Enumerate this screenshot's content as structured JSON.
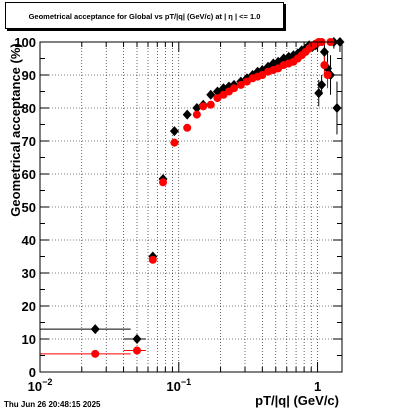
{
  "chart_data": {
    "type": "scatter",
    "title": "Geometrical acceptance for Global vs pT/|q| (GeV/c) at |  η  | <= 1.0",
    "xlabel": "pT/|q| (GeV/c)",
    "ylabel": "Geometrical acceptance (%)",
    "xscale": "log",
    "xlim": [
      0.01,
      1.5
    ],
    "ylim": [
      0,
      100
    ],
    "grid": true,
    "y_ticks": [
      "0",
      "10",
      "20",
      "30",
      "40",
      "50",
      "60",
      "70",
      "80",
      "90",
      "100"
    ],
    "x_tick_labels": [
      {
        "value": 0.01,
        "base": "10",
        "exp": "−2"
      },
      {
        "value": 0.1,
        "base": "10",
        "exp": "−1"
      },
      {
        "value": 1,
        "base": "1",
        "exp": ""
      }
    ],
    "series": [
      {
        "color": "#000000",
        "points": [
          {
            "x": 0.025,
            "xerr": [
              0.01,
              0.045
            ],
            "y": 13
          },
          {
            "x": 0.05,
            "xerr": [
              0.04,
              0.058
            ],
            "y": 10
          },
          {
            "x": 0.065,
            "y": 35
          },
          {
            "x": 0.077,
            "y": 58.5
          },
          {
            "x": 0.093,
            "xerr": [
              0.087,
              0.1
            ],
            "y": 73
          },
          {
            "x": 0.115,
            "xerr": [
              0.108,
              0.122
            ],
            "y": 78
          },
          {
            "x": 0.135,
            "y": 80
          },
          {
            "x": 0.15,
            "y": 81
          },
          {
            "x": 0.17,
            "y": 84
          },
          {
            "x": 0.19,
            "y": 85
          },
          {
            "x": 0.21,
            "y": 86
          },
          {
            "x": 0.23,
            "y": 86.5
          },
          {
            "x": 0.25,
            "y": 87
          },
          {
            "x": 0.28,
            "y": 88
          },
          {
            "x": 0.31,
            "y": 89
          },
          {
            "x": 0.34,
            "y": 90
          },
          {
            "x": 0.37,
            "y": 91
          },
          {
            "x": 0.4,
            "y": 91.5
          },
          {
            "x": 0.44,
            "y": 92.5
          },
          {
            "x": 0.48,
            "y": 93.5
          },
          {
            "x": 0.52,
            "y": 94
          },
          {
            "x": 0.57,
            "y": 95
          },
          {
            "x": 0.62,
            "y": 95.5
          },
          {
            "x": 0.67,
            "y": 96
          },
          {
            "x": 0.72,
            "y": 96.5
          },
          {
            "x": 0.77,
            "y": 97.5
          },
          {
            "x": 0.82,
            "y": 98
          },
          {
            "x": 0.87,
            "y": 99
          },
          {
            "x": 0.92,
            "y": 98.5
          },
          {
            "x": 0.97,
            "y": 99
          },
          {
            "x": 1.02,
            "y": 84.5,
            "yerr": 4
          },
          {
            "x": 1.07,
            "y": 87,
            "yerr": 3
          },
          {
            "x": 1.12,
            "y": 97,
            "yerr": 4
          },
          {
            "x": 1.18,
            "y": 92,
            "yerr": 5
          },
          {
            "x": 1.24,
            "y": 90,
            "yerr": 6
          },
          {
            "x": 1.31,
            "y": 100,
            "yerr": 2
          },
          {
            "x": 1.38,
            "y": 80,
            "yerr": 8
          },
          {
            "x": 1.45,
            "y": 100,
            "yerr": 3
          }
        ]
      },
      {
        "color": "#ff0000",
        "points": [
          {
            "x": 0.025,
            "xerr": [
              0.01,
              0.045
            ],
            "y": 5.5
          },
          {
            "x": 0.05,
            "xerr": [
              0.04,
              0.058
            ],
            "y": 6.5
          },
          {
            "x": 0.065,
            "y": 34
          },
          {
            "x": 0.077,
            "y": 57.5
          },
          {
            "x": 0.093,
            "xerr": [
              0.087,
              0.1
            ],
            "y": 69.5
          },
          {
            "x": 0.115,
            "xerr": [
              0.108,
              0.122
            ],
            "y": 74
          },
          {
            "x": 0.135,
            "y": 78
          },
          {
            "x": 0.15,
            "y": 80.5
          },
          {
            "x": 0.17,
            "y": 81
          },
          {
            "x": 0.19,
            "y": 83
          },
          {
            "x": 0.21,
            "y": 84
          },
          {
            "x": 0.23,
            "y": 85
          },
          {
            "x": 0.25,
            "y": 86
          },
          {
            "x": 0.28,
            "y": 87
          },
          {
            "x": 0.31,
            "y": 88
          },
          {
            "x": 0.34,
            "y": 89
          },
          {
            "x": 0.37,
            "y": 89.5
          },
          {
            "x": 0.4,
            "y": 90
          },
          {
            "x": 0.44,
            "y": 91
          },
          {
            "x": 0.48,
            "y": 91.5
          },
          {
            "x": 0.52,
            "y": 92
          },
          {
            "x": 0.57,
            "y": 93
          },
          {
            "x": 0.62,
            "y": 93.5
          },
          {
            "x": 0.67,
            "y": 94
          },
          {
            "x": 0.72,
            "y": 95
          },
          {
            "x": 0.77,
            "y": 96
          },
          {
            "x": 0.82,
            "y": 97
          },
          {
            "x": 0.87,
            "y": 98
          },
          {
            "x": 0.92,
            "y": 99
          },
          {
            "x": 0.97,
            "y": 99.5
          },
          {
            "x": 1.02,
            "y": 100
          },
          {
            "x": 1.07,
            "y": 100
          },
          {
            "x": 1.12,
            "y": 93,
            "yerr": 3
          },
          {
            "x": 1.18,
            "y": 90,
            "yerr": 4
          },
          {
            "x": 1.24,
            "y": 100
          }
        ]
      }
    ]
  },
  "footer": {
    "timestamp": "Thu Jun 26 20:48:15 2025"
  }
}
